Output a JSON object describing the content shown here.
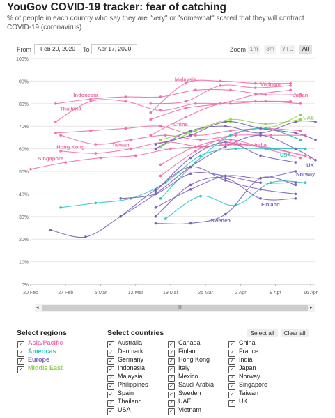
{
  "header": {
    "title": "YouGov COVID-19 tracker: fear of catching",
    "subtitle": "% of people in each country who say they are \"very\" or \"somewhat\" scared that they will contract COVID-19 (coronavirus)."
  },
  "range": {
    "from_label": "From",
    "from_value": "Feb 20, 2020",
    "to_label": "To",
    "to_value": "Apr 17, 2020"
  },
  "zoom": {
    "label": "Zoom",
    "buttons": [
      "1m",
      "3m",
      "YTD",
      "All"
    ],
    "active": "All"
  },
  "scrollbar": {
    "grip": "III",
    "left": "◂",
    "right": "▸"
  },
  "colors": {
    "asia_pacific": "#f06faa",
    "americas": "#2ec4c4",
    "europe": "#7b62b8",
    "middle_east": "#8fd14f",
    "grid": "#e6e6e6"
  },
  "regions": {
    "heading": "Select regions",
    "items": [
      {
        "label": "Asia/Pacific",
        "color": "#f06faa",
        "checked": true
      },
      {
        "label": "Americas",
        "color": "#2ec4c4",
        "checked": true
      },
      {
        "label": "Europe",
        "color": "#7b62b8",
        "checked": true
      },
      {
        "label": "Middle East",
        "color": "#8fd14f",
        "checked": true
      }
    ]
  },
  "countries": {
    "heading": "Select countries",
    "select_all": "Select all",
    "clear_all": "Clear all",
    "columns": [
      [
        "Australia",
        "Denmark",
        "Germany",
        "Indonesia",
        "Malaysia",
        "Philippines",
        "Spain",
        "Thailand",
        "USA"
      ],
      [
        "Canada",
        "Finland",
        "Hong Kong",
        "Italy",
        "Mexico",
        "Saudi Arabia",
        "Sweden",
        "UAE",
        "Vietnam"
      ],
      [
        "China",
        "France",
        "India",
        "Japan",
        "Norway",
        "Singapore",
        "Taiwan",
        "UK"
      ]
    ]
  },
  "chart_data": {
    "type": "line",
    "xlim": [
      "2020-02-20",
      "2020-04-17"
    ],
    "ylim": [
      0,
      100
    ],
    "x_ticks": [
      "20 Feb",
      "27 Feb",
      "5 Mar",
      "12 Mar",
      "19 Mar",
      "26 Mar",
      "2 Apr",
      "9 Apr",
      "16 Apr"
    ],
    "y_ticks": [
      "0%",
      "10%",
      "20%",
      "30%",
      "40%",
      "50%",
      "60%",
      "70%",
      "80%",
      "90%",
      "100%"
    ],
    "grid": true,
    "series": [
      {
        "name": "Malaysia",
        "color": "#f06faa",
        "label_at": [
          "2020-03-22",
          90
        ],
        "points": [
          [
            "2020-03-15",
            76
          ],
          [
            "2020-03-22",
            89
          ],
          [
            "2020-03-29",
            90
          ],
          [
            "2020-04-05",
            89
          ],
          [
            "2020-04-12",
            89
          ]
        ]
      },
      {
        "name": "Vietnam",
        "color": "#f06faa",
        "label_at": [
          "2020-04-08",
          88
        ],
        "points": [
          [
            "2020-03-15",
            80
          ],
          [
            "2020-03-22",
            81
          ],
          [
            "2020-03-29",
            88
          ],
          [
            "2020-04-05",
            87
          ],
          [
            "2020-04-12",
            88
          ]
        ]
      },
      {
        "name": "Japan",
        "color": "#f06faa",
        "label_at": [
          "2020-04-14",
          83
        ],
        "points": [
          [
            "2020-03-15",
            73
          ],
          [
            "2020-03-22",
            78
          ],
          [
            "2020-03-29",
            80
          ],
          [
            "2020-04-05",
            84
          ],
          [
            "2020-04-12",
            86
          ]
        ]
      },
      {
        "name": "Indonesia",
        "color": "#f06faa",
        "label_at": [
          "2020-03-02",
          83
        ],
        "points": [
          [
            "2020-02-25",
            80
          ],
          [
            "2020-03-03",
            82
          ],
          [
            "2020-03-10",
            83
          ],
          [
            "2020-03-17",
            83
          ],
          [
            "2020-03-24",
            86
          ],
          [
            "2020-03-31",
            86
          ],
          [
            "2020-04-07",
            84
          ],
          [
            "2020-04-14",
            84
          ]
        ]
      },
      {
        "name": "Thailand",
        "color": "#f06faa",
        "label_at": [
          "2020-02-28",
          77
        ],
        "points": [
          [
            "2020-02-25",
            72
          ],
          [
            "2020-03-03",
            81
          ],
          [
            "2020-03-10",
            81
          ],
          [
            "2020-03-17",
            77
          ],
          [
            "2020-03-24",
            80
          ],
          [
            "2020-03-31",
            80
          ],
          [
            "2020-04-07",
            81
          ],
          [
            "2020-04-14",
            80
          ]
        ]
      },
      {
        "name": "China",
        "color": "#f06faa",
        "label_at": [
          "2020-03-21",
          70
        ],
        "points": [
          [
            "2020-02-25",
            67
          ],
          [
            "2020-03-03",
            68
          ],
          [
            "2020-03-10",
            69
          ],
          [
            "2020-03-17",
            70
          ],
          [
            "2020-03-24",
            66
          ],
          [
            "2020-03-31",
            68
          ],
          [
            "2020-04-07",
            69
          ],
          [
            "2020-04-14",
            68
          ]
        ]
      },
      {
        "name": "Hong Kong",
        "color": "#f06faa",
        "label_at": [
          "2020-02-28",
          60
        ],
        "points": [
          [
            "2020-02-26",
            66
          ],
          [
            "2020-03-04",
            62
          ],
          [
            "2020-03-11",
            64
          ],
          [
            "2020-03-18",
            66
          ],
          [
            "2020-03-25",
            64
          ],
          [
            "2020-04-01",
            66
          ],
          [
            "2020-04-08",
            66
          ],
          [
            "2020-04-15",
            66
          ]
        ]
      },
      {
        "name": "Taiwan",
        "color": "#f06faa",
        "label_at": [
          "2020-03-09",
          61
        ],
        "points": [
          [
            "2020-02-26",
            59
          ],
          [
            "2020-03-04",
            58
          ],
          [
            "2020-03-11",
            60
          ],
          [
            "2020-03-18",
            63
          ],
          [
            "2020-03-25",
            61
          ],
          [
            "2020-04-01",
            62
          ],
          [
            "2020-04-08",
            60
          ],
          [
            "2020-04-15",
            57
          ]
        ]
      },
      {
        "name": "Singapore",
        "color": "#f06faa",
        "label_at": [
          "2020-02-24",
          55
        ],
        "points": [
          [
            "2020-02-20",
            51
          ],
          [
            "2020-02-27",
            54
          ],
          [
            "2020-03-05",
            56
          ],
          [
            "2020-03-12",
            57
          ],
          [
            "2020-03-19",
            60
          ],
          [
            "2020-03-26",
            61
          ],
          [
            "2020-04-02",
            62
          ],
          [
            "2020-04-09",
            60
          ],
          [
            "2020-04-16",
            56
          ]
        ]
      },
      {
        "name": "India",
        "color": "#f06faa",
        "label_at": [
          "2020-04-06",
          61
        ],
        "points": [
          [
            "2020-03-17",
            53
          ],
          [
            "2020-03-24",
            61
          ],
          [
            "2020-03-31",
            64
          ],
          [
            "2020-04-07",
            60
          ],
          [
            "2020-04-14",
            56
          ]
        ]
      },
      {
        "name": "Australia",
        "color": "#f06faa",
        "label_at": [
          "2020-03-31",
          61.5
        ],
        "points": [
          [
            "2020-03-17",
            48
          ],
          [
            "2020-03-24",
            59
          ],
          [
            "2020-03-31",
            66
          ],
          [
            "2020-04-07",
            69
          ],
          [
            "2020-04-14",
            64
          ]
        ]
      },
      {
        "name": "Philippines",
        "color": "#f06faa",
        "points": [
          [
            "2020-03-15",
            66
          ],
          [
            "2020-03-22",
            74
          ],
          [
            "2020-03-29",
            80
          ],
          [
            "2020-04-05",
            81
          ],
          [
            "2020-04-12",
            81
          ]
        ]
      },
      {
        "name": "UAE",
        "color": "#8fd14f",
        "label_at": [
          "2020-04-16",
          73
        ],
        "points": [
          [
            "2020-03-17",
            64
          ],
          [
            "2020-03-24",
            68
          ],
          [
            "2020-03-31",
            72
          ],
          [
            "2020-04-07",
            69
          ],
          [
            "2020-04-14",
            75
          ]
        ]
      },
      {
        "name": "Saudi Arabia",
        "color": "#8fd14f",
        "points": [
          [
            "2020-03-17",
            61
          ],
          [
            "2020-03-24",
            68
          ],
          [
            "2020-03-31",
            73
          ],
          [
            "2020-04-07",
            71
          ],
          [
            "2020-04-14",
            73
          ]
        ]
      },
      {
        "name": "USA",
        "color": "#2ec4c4",
        "label_at": [
          "2020-04-11",
          56.5
        ],
        "points": [
          [
            "2020-02-26",
            34
          ],
          [
            "2020-03-04",
            36
          ],
          [
            "2020-03-11",
            38
          ],
          [
            "2020-03-18",
            45
          ],
          [
            "2020-03-25",
            57
          ],
          [
            "2020-04-01",
            60
          ],
          [
            "2020-04-08",
            60
          ],
          [
            "2020-04-15",
            60
          ]
        ]
      },
      {
        "name": "Canada",
        "color": "#2ec4c4",
        "points": [
          [
            "2020-03-17",
            38
          ],
          [
            "2020-03-24",
            54
          ],
          [
            "2020-03-31",
            66
          ],
          [
            "2020-04-07",
            69
          ],
          [
            "2020-04-14",
            64
          ]
        ]
      },
      {
        "name": "Mexico",
        "color": "#2ec4c4",
        "points": [
          [
            "2020-03-18",
            29
          ],
          [
            "2020-03-25",
            39
          ],
          [
            "2020-04-01",
            35
          ],
          [
            "2020-04-08",
            45
          ],
          [
            "2020-04-15",
            45
          ]
        ]
      },
      {
        "name": "UK",
        "color": "#7b62b8",
        "label_at": [
          "2020-04-17",
          52
        ],
        "points": [
          [
            "2020-02-24",
            24
          ],
          [
            "2020-03-02",
            21
          ],
          [
            "2020-03-09",
            30
          ],
          [
            "2020-03-16",
            40
          ],
          [
            "2020-03-23",
            52
          ],
          [
            "2020-03-30",
            61
          ],
          [
            "2020-04-06",
            66
          ],
          [
            "2020-04-13",
            60
          ],
          [
            "2020-04-17",
            55
          ]
        ]
      },
      {
        "name": "Norway",
        "color": "#7b62b8",
        "label_at": [
          "2020-04-15",
          48
        ],
        "points": [
          [
            "2020-03-16",
            34
          ],
          [
            "2020-03-23",
            42
          ],
          [
            "2020-03-30",
            48
          ],
          [
            "2020-04-06",
            47
          ],
          [
            "2020-04-13",
            50
          ]
        ]
      },
      {
        "name": "Finland",
        "color": "#7b62b8",
        "label_at": [
          "2020-04-08",
          34.5
        ],
        "points": [
          [
            "2020-03-16",
            30
          ],
          [
            "2020-03-23",
            44
          ],
          [
            "2020-03-30",
            47
          ],
          [
            "2020-04-06",
            38
          ],
          [
            "2020-04-13",
            38
          ]
        ]
      },
      {
        "name": "Sweden",
        "color": "#7b62b8",
        "label_at": [
          "2020-03-29",
          27.5
        ],
        "points": [
          [
            "2020-03-16",
            27
          ],
          [
            "2020-03-23",
            27
          ],
          [
            "2020-03-30",
            31
          ],
          [
            "2020-04-06",
            47
          ],
          [
            "2020-04-13",
            44
          ]
        ]
      },
      {
        "name": "Germany",
        "color": "#7b62b8",
        "points": [
          [
            "2020-03-09",
            38
          ],
          [
            "2020-03-16",
            40
          ],
          [
            "2020-03-23",
            49
          ],
          [
            "2020-03-30",
            48
          ],
          [
            "2020-04-06",
            45
          ],
          [
            "2020-04-13",
            45
          ]
        ]
      },
      {
        "name": "Italy",
        "color": "#7b62b8",
        "points": [
          [
            "2020-03-16",
            60
          ],
          [
            "2020-03-23",
            68
          ],
          [
            "2020-03-30",
            70
          ],
          [
            "2020-04-06",
            67
          ],
          [
            "2020-04-13",
            72
          ],
          [
            "2020-04-17",
            72
          ]
        ]
      },
      {
        "name": "Spain",
        "color": "#7b62b8",
        "points": [
          [
            "2020-03-16",
            62
          ],
          [
            "2020-03-23",
            66
          ],
          [
            "2020-03-30",
            72
          ],
          [
            "2020-04-06",
            69
          ],
          [
            "2020-04-13",
            67
          ],
          [
            "2020-04-17",
            64
          ]
        ]
      },
      {
        "name": "France",
        "color": "#7b62b8",
        "points": [
          [
            "2020-03-16",
            41
          ],
          [
            "2020-03-23",
            56
          ],
          [
            "2020-03-30",
            63
          ],
          [
            "2020-04-06",
            57
          ],
          [
            "2020-04-13",
            54
          ]
        ]
      },
      {
        "name": "Denmark",
        "color": "#7b62b8",
        "points": [
          [
            "2020-03-09",
            30
          ],
          [
            "2020-03-16",
            42
          ],
          [
            "2020-03-23",
            52
          ],
          [
            "2020-03-30",
            46
          ],
          [
            "2020-04-06",
            42
          ],
          [
            "2020-04-13",
            40
          ]
        ]
      }
    ]
  }
}
